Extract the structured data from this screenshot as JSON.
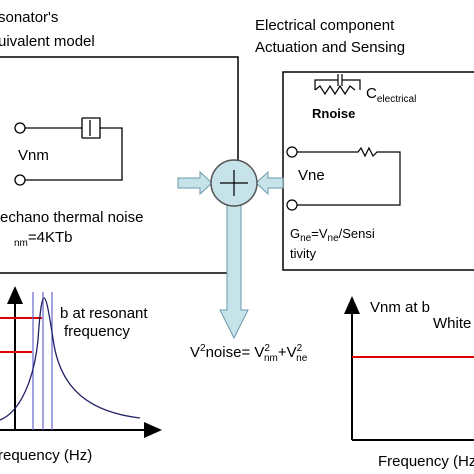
{
  "left_box": {
    "title_line1": "sonator's",
    "title_line2": "uivalent model",
    "port_label": "Vnm",
    "noise_line1": "echano thermal noise",
    "noise_line2_sub": "nm",
    "noise_line2_rest": "=4KTb"
  },
  "right_box": {
    "title_line1": "Electrical component",
    "title_line2": "Actuation and Sensing",
    "cap_label": "C",
    "cap_label_sub": "electrical",
    "resistor_label": "Rnoise",
    "port_label": "Vne",
    "gain_parts": [
      "G",
      "ne",
      "=V",
      "ne",
      "/Sensi"
    ],
    "gain_line2": "tivity"
  },
  "sum": {
    "parts": [
      "V",
      "2",
      "noise= V",
      "2",
      "nm",
      "+V",
      "2",
      "ne"
    ]
  },
  "left_plot": {
    "annotation_line1": "b at resonant",
    "annotation_line2": "frequency",
    "x_label": "requency (Hz)"
  },
  "right_plot": {
    "y_label": "Vnm at b",
    "annotation": "White",
    "x_label": "Frequency (Hz"
  }
}
